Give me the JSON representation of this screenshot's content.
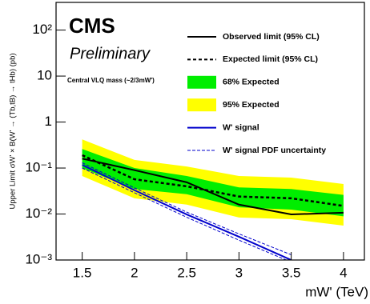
{
  "chart_data": {
    "type": "line",
    "label": "CMS",
    "sublabel": "Preliminary",
    "annotation": "Central VLQ mass (~2/3mW')",
    "x_label": "mW' (TeV)",
    "y_label": "Upper Limit σW' × B(W' → (Tb,tB) → tHb) (pb)",
    "log_y": true,
    "x": [
      1.5,
      2,
      2.5,
      3,
      3.5,
      4
    ],
    "xlim": [
      1.25,
      4.2
    ],
    "xticks": [
      1.5,
      2,
      2.5,
      3,
      3.5,
      4
    ],
    "ylim": [
      0.001,
      400
    ],
    "yticks": [
      {
        "value": 0.001,
        "label": "10⁻³"
      },
      {
        "value": 0.01,
        "label": "10⁻²"
      },
      {
        "value": 0.1,
        "label": "10⁻¹"
      },
      1,
      10,
      {
        "value": 100,
        "label": "10²"
      }
    ],
    "series": [
      {
        "name": "Observed limit (95% CL)",
        "kind": "line",
        "style": "solid",
        "color": "#000000",
        "values": [
          0.16,
          0.09,
          0.049,
          0.016,
          0.0098,
          0.0107
        ]
      },
      {
        "name": "Expected limit (95% CL)",
        "kind": "line",
        "style": "dashed",
        "color": "#000000",
        "values": [
          0.19,
          0.057,
          0.04,
          0.024,
          0.022,
          0.015
        ]
      },
      {
        "name": "68% Expected",
        "kind": "band",
        "color": "#00ee00",
        "low": [
          0.1,
          0.035,
          0.027,
          0.014,
          0.0125,
          0.0089
        ],
        "high": [
          0.26,
          0.1,
          0.067,
          0.038,
          0.035,
          0.026
        ]
      },
      {
        "name": "95% Expected",
        "kind": "band",
        "color": "#ffff00",
        "low": [
          0.067,
          0.022,
          0.016,
          0.0084,
          0.0077,
          0.0056
        ],
        "high": [
          0.42,
          0.15,
          0.108,
          0.067,
          0.062,
          0.045
        ]
      },
      {
        "name": "W' signal",
        "kind": "line",
        "style": "solid",
        "color": "#0000cc",
        "values": [
          0.117,
          0.033,
          0.0098,
          0.0032,
          0.001,
          null
        ]
      },
      {
        "name": "W' signal PDF uncertainty",
        "kind": "lines",
        "style": "dashed",
        "color": "#0000cc",
        "low": [
          0.1,
          0.029,
          0.0085,
          0.0027,
          0.0009,
          null
        ],
        "high": [
          0.13,
          0.037,
          0.011,
          0.0037,
          0.0013,
          null
        ]
      }
    ]
  }
}
